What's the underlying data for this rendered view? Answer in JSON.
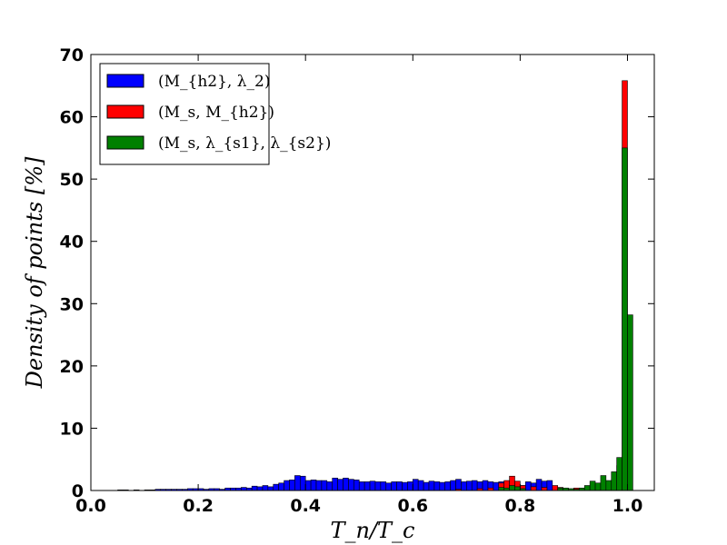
{
  "chart_data": {
    "type": "bar",
    "title": "",
    "xlabel": "T_n/T_c",
    "ylabel": "Density of points [%]",
    "xlim": [
      0.0,
      1.05
    ],
    "ylim": [
      0,
      70
    ],
    "xticks": [
      "0.0",
      "0.2",
      "0.4",
      "0.6",
      "0.8",
      "1.0"
    ],
    "yticks": [
      "0",
      "10",
      "20",
      "30",
      "40",
      "50",
      "60",
      "70"
    ],
    "legend_position": "top-left",
    "grid": false,
    "bin_width": 0.01,
    "series": [
      {
        "name": "(M_{h2}, λ_2)",
        "color": "#0000ff",
        "bins": [
          [
            0.05,
            0.1
          ],
          [
            0.06,
            0.1
          ],
          [
            0.08,
            0.1
          ],
          [
            0.1,
            0.1
          ],
          [
            0.11,
            0.1
          ],
          [
            0.12,
            0.2
          ],
          [
            0.13,
            0.2
          ],
          [
            0.14,
            0.2
          ],
          [
            0.15,
            0.2
          ],
          [
            0.16,
            0.2
          ],
          [
            0.17,
            0.2
          ],
          [
            0.18,
            0.3
          ],
          [
            0.19,
            0.3
          ],
          [
            0.2,
            0.3
          ],
          [
            0.21,
            0.2
          ],
          [
            0.22,
            0.3
          ],
          [
            0.23,
            0.3
          ],
          [
            0.24,
            0.2
          ],
          [
            0.25,
            0.4
          ],
          [
            0.26,
            0.4
          ],
          [
            0.27,
            0.4
          ],
          [
            0.28,
            0.5
          ],
          [
            0.29,
            0.4
          ],
          [
            0.3,
            0.7
          ],
          [
            0.31,
            0.6
          ],
          [
            0.32,
            0.8
          ],
          [
            0.33,
            0.6
          ],
          [
            0.34,
            1.0
          ],
          [
            0.35,
            1.2
          ],
          [
            0.36,
            1.6
          ],
          [
            0.37,
            1.7
          ],
          [
            0.38,
            2.4
          ],
          [
            0.39,
            2.3
          ],
          [
            0.4,
            1.6
          ],
          [
            0.41,
            1.7
          ],
          [
            0.42,
            1.6
          ],
          [
            0.43,
            1.6
          ],
          [
            0.44,
            1.4
          ],
          [
            0.45,
            2.0
          ],
          [
            0.46,
            1.8
          ],
          [
            0.47,
            2.0
          ],
          [
            0.48,
            1.8
          ],
          [
            0.49,
            1.7
          ],
          [
            0.5,
            1.4
          ],
          [
            0.51,
            1.4
          ],
          [
            0.52,
            1.5
          ],
          [
            0.53,
            1.4
          ],
          [
            0.54,
            1.4
          ],
          [
            0.55,
            1.2
          ],
          [
            0.56,
            1.4
          ],
          [
            0.57,
            1.4
          ],
          [
            0.58,
            1.3
          ],
          [
            0.59,
            1.4
          ],
          [
            0.6,
            1.8
          ],
          [
            0.61,
            1.6
          ],
          [
            0.62,
            1.3
          ],
          [
            0.63,
            1.5
          ],
          [
            0.64,
            1.4
          ],
          [
            0.65,
            1.3
          ],
          [
            0.66,
            1.4
          ],
          [
            0.67,
            1.6
          ],
          [
            0.68,
            1.8
          ],
          [
            0.69,
            1.4
          ],
          [
            0.7,
            1.5
          ],
          [
            0.71,
            1.6
          ],
          [
            0.72,
            1.4
          ],
          [
            0.73,
            1.6
          ],
          [
            0.74,
            1.4
          ],
          [
            0.75,
            1.3
          ],
          [
            0.76,
            1.4
          ],
          [
            0.77,
            1.3
          ],
          [
            0.78,
            1.2
          ],
          [
            0.79,
            1.0
          ],
          [
            0.8,
            0.8
          ],
          [
            0.81,
            1.4
          ],
          [
            0.82,
            1.2
          ],
          [
            0.83,
            1.8
          ],
          [
            0.84,
            1.5
          ],
          [
            0.85,
            1.6
          ],
          [
            0.86,
            0.6
          ],
          [
            0.87,
            0.3
          ],
          [
            0.88,
            0.2
          ],
          [
            0.89,
            0.2
          ]
        ]
      },
      {
        "name": "(M_s, M_{h2})",
        "color": "#ff0000",
        "bins": [
          [
            0.68,
            0.2
          ],
          [
            0.72,
            0.3
          ],
          [
            0.74,
            0.4
          ],
          [
            0.76,
            1.2
          ],
          [
            0.77,
            1.6
          ],
          [
            0.78,
            2.3
          ],
          [
            0.79,
            1.5
          ],
          [
            0.8,
            0.8
          ],
          [
            0.82,
            0.6
          ],
          [
            0.84,
            0.5
          ],
          [
            0.86,
            0.8
          ],
          [
            0.87,
            0.5
          ],
          [
            0.9,
            0.4
          ],
          [
            0.96,
            0.8
          ],
          [
            0.97,
            1.8
          ],
          [
            0.98,
            4.0
          ],
          [
            0.99,
            65.8
          ]
        ]
      },
      {
        "name": "(M_s, λ_{s1}, λ_{s2})",
        "color": "#008000",
        "bins": [
          [
            0.76,
            0.5
          ],
          [
            0.77,
            0.4
          ],
          [
            0.78,
            0.8
          ],
          [
            0.79,
            0.6
          ],
          [
            0.8,
            0.3
          ],
          [
            0.87,
            0.4
          ],
          [
            0.88,
            0.4
          ],
          [
            0.89,
            0.3
          ],
          [
            0.9,
            0.2
          ],
          [
            0.91,
            0.4
          ],
          [
            0.92,
            0.8
          ],
          [
            0.93,
            1.5
          ],
          [
            0.94,
            1.2
          ],
          [
            0.95,
            2.4
          ],
          [
            0.96,
            1.6
          ],
          [
            0.97,
            3.0
          ],
          [
            0.98,
            5.3
          ],
          [
            0.99,
            55.0
          ],
          [
            1.0,
            28.2
          ]
        ]
      }
    ]
  }
}
